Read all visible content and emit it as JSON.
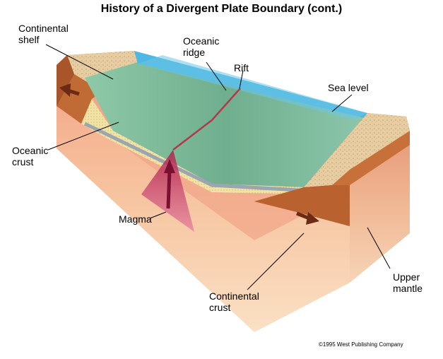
{
  "title": "History of a Divergent Plate Boundary (cont.)",
  "labels": {
    "continental_shelf": [
      "Continental",
      "shelf"
    ],
    "oceanic_ridge": [
      "Oceanic",
      "ridge"
    ],
    "rift": "Rift",
    "sea_level": "Sea level",
    "oceanic_crust": [
      "Oceanic",
      "crust"
    ],
    "magma": "Magma",
    "upper_mantle": [
      "Upper",
      "mantle"
    ],
    "continental_crust": [
      "Continental",
      "crust"
    ]
  },
  "credit": "©1995 West Publishing Company",
  "colors": {
    "sea": "#5cc0e0",
    "ocean_floor": "#7fb89a",
    "continental_top": "#e8c89a",
    "continental_crust": "#c8703a",
    "mantle_upper": "#f2a58a",
    "mantle_lower": "#f8d8b8",
    "magma": "#d0406a",
    "sediment": "#f0e0a0"
  }
}
